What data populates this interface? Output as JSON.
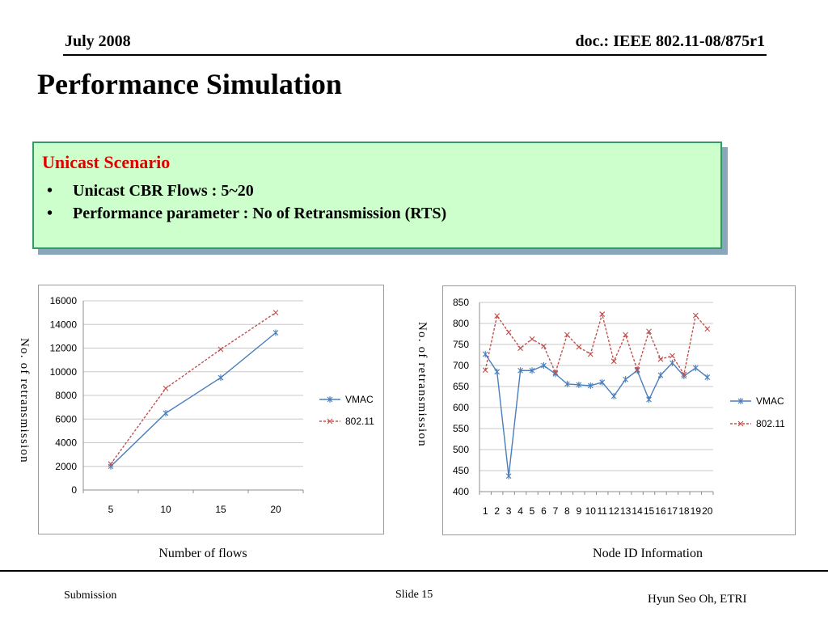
{
  "header": {
    "date": "July 2008",
    "doc": "doc.: IEEE 802.11-08/875r1"
  },
  "title": "Performance Simulation",
  "scenario": {
    "heading": "Unicast Scenario",
    "marker": "•",
    "bullets": [
      "Unicast CBR Flows : 5~20",
      "Performance parameter : No of Retransmission (RTS)"
    ]
  },
  "colors": {
    "heading_red": "#e00000",
    "box_background": "#ccffcc",
    "box_border": "#339966",
    "box_shadow": "#8aa6bb"
  },
  "chart_data": [
    {
      "type": "line",
      "categories": [
        "5",
        "10",
        "15",
        "20"
      ],
      "series": [
        {
          "name": "VMAC",
          "values": [
            2000,
            6500,
            9500,
            13300
          ],
          "color": "#4a7ebb",
          "marker": "asterisk",
          "dash": "solid"
        },
        {
          "name": "802.11",
          "values": [
            2200,
            8600,
            11900,
            15000
          ],
          "color": "#c0504d",
          "marker": "x",
          "dash": "dashed"
        }
      ],
      "xlabel": "Number of flows",
      "ylabel": "No. of retransmission",
      "ylim": [
        0,
        16000
      ],
      "yticks": [
        "0",
        "2000",
        "4000",
        "6000",
        "8000",
        "10000",
        "12000",
        "14000",
        "16000"
      ],
      "grid": true,
      "legend": "right"
    },
    {
      "type": "line",
      "categories": [
        "1",
        "2",
        "3",
        "4",
        "5",
        "6",
        "7",
        "8",
        "9",
        "10",
        "11",
        "12",
        "13",
        "14",
        "15",
        "16",
        "17",
        "18",
        "19",
        "20"
      ],
      "series": [
        {
          "name": "VMAC",
          "values": [
            727,
            685,
            437,
            688,
            688,
            700,
            680,
            656,
            654,
            652,
            660,
            627,
            667,
            688,
            619,
            677,
            706,
            675,
            694,
            672
          ],
          "color": "#4a7ebb",
          "marker": "asterisk",
          "dash": "solid"
        },
        {
          "name": "802.11",
          "values": [
            689,
            818,
            779,
            741,
            763,
            746,
            683,
            773,
            744,
            727,
            822,
            710,
            773,
            690,
            781,
            715,
            723,
            679,
            819,
            787
          ],
          "color": "#c0504d",
          "marker": "x",
          "dash": "dashed"
        }
      ],
      "xlabel": "Node ID Information",
      "ylabel": "No. of retransmission",
      "ylim": [
        400,
        850
      ],
      "yticks": [
        "400",
        "450",
        "500",
        "550",
        "600",
        "650",
        "700",
        "750",
        "800",
        "850"
      ],
      "grid": true,
      "legend": "right"
    }
  ],
  "footer": {
    "left": "Submission",
    "center": "Slide 15",
    "right": "Hyun Seo Oh, ETRI"
  }
}
